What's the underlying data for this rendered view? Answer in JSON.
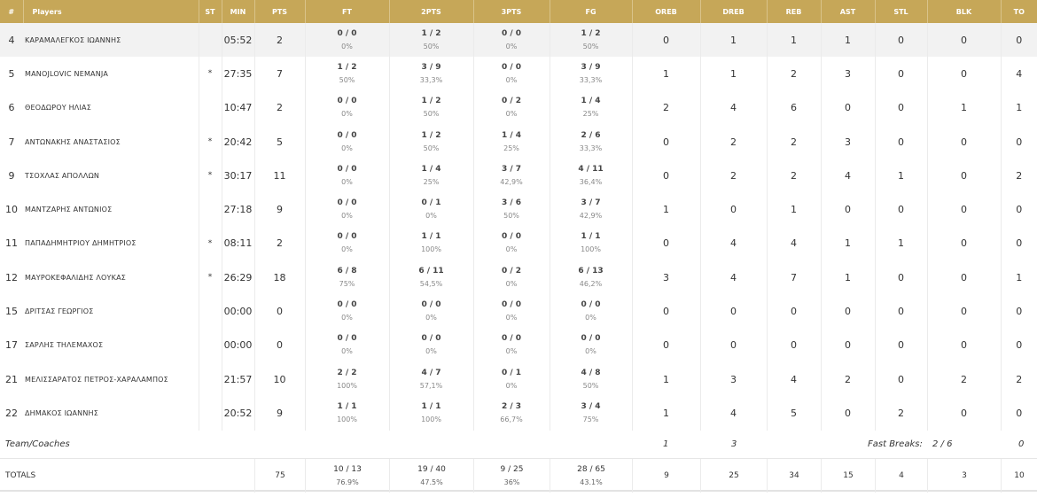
{
  "headers": {
    "num": "#",
    "players": "Players",
    "st": "ST",
    "min": "MIN",
    "pts": "PTS",
    "ft": "FT",
    "pts2": "2PTS",
    "pts3": "3PTS",
    "fg": "FG",
    "oreb": "OREB",
    "dreb": "DREB",
    "reb": "REB",
    "ast": "AST",
    "stl": "STL",
    "blk": "BLK",
    "to": "TO"
  },
  "players": [
    {
      "num": "4",
      "name": "ΚΑΡΑΜΑΛΕΓΚΟΣ ΙΩΑΝΝΗΣ",
      "st": "",
      "min": "05:52",
      "pts": "2",
      "ft": "0 / 0",
      "ft_pct": "0%",
      "p2": "1 / 2",
      "p2_pct": "50%",
      "p3": "0 / 0",
      "p3_pct": "0%",
      "fg": "1 / 2",
      "fg_pct": "50%",
      "oreb": "0",
      "dreb": "1",
      "reb": "1",
      "ast": "1",
      "stl": "0",
      "blk": "0",
      "to": "0"
    },
    {
      "num": "5",
      "name": "MANOJLOVIC NEMANJA",
      "st": "*",
      "min": "27:35",
      "pts": "7",
      "ft": "1 / 2",
      "ft_pct": "50%",
      "p2": "3 / 9",
      "p2_pct": "33,3%",
      "p3": "0 / 0",
      "p3_pct": "0%",
      "fg": "3 / 9",
      "fg_pct": "33,3%",
      "oreb": "1",
      "dreb": "1",
      "reb": "2",
      "ast": "3",
      "stl": "0",
      "blk": "0",
      "to": "4"
    },
    {
      "num": "6",
      "name": "ΘΕΟΔΩΡΟΥ ΗΛΙΑΣ",
      "st": "",
      "min": "10:47",
      "pts": "2",
      "ft": "0 / 0",
      "ft_pct": "0%",
      "p2": "1 / 2",
      "p2_pct": "50%",
      "p3": "0 / 2",
      "p3_pct": "0%",
      "fg": "1 / 4",
      "fg_pct": "25%",
      "oreb": "2",
      "dreb": "4",
      "reb": "6",
      "ast": "0",
      "stl": "0",
      "blk": "1",
      "to": "1"
    },
    {
      "num": "7",
      "name": "ΑΝΤΩΝΑΚΗΣ ΑΝΑΣΤΑΣΙΟΣ",
      "st": "*",
      "min": "20:42",
      "pts": "5",
      "ft": "0 / 0",
      "ft_pct": "0%",
      "p2": "1 / 2",
      "p2_pct": "50%",
      "p3": "1 / 4",
      "p3_pct": "25%",
      "fg": "2 / 6",
      "fg_pct": "33,3%",
      "oreb": "0",
      "dreb": "2",
      "reb": "2",
      "ast": "3",
      "stl": "0",
      "blk": "0",
      "to": "0"
    },
    {
      "num": "9",
      "name": "ΤΣΟΧΛΑΣ ΑΠΟΛΛΩΝ",
      "st": "*",
      "min": "30:17",
      "pts": "11",
      "ft": "0 / 0",
      "ft_pct": "0%",
      "p2": "1 / 4",
      "p2_pct": "25%",
      "p3": "3 / 7",
      "p3_pct": "42,9%",
      "fg": "4 / 11",
      "fg_pct": "36,4%",
      "oreb": "0",
      "dreb": "2",
      "reb": "2",
      "ast": "4",
      "stl": "1",
      "blk": "0",
      "to": "2"
    },
    {
      "num": "10",
      "name": "ΜΑΝΤΖΑΡΗΣ ΑΝΤΩΝΙΟΣ",
      "st": "",
      "min": "27:18",
      "pts": "9",
      "ft": "0 / 0",
      "ft_pct": "0%",
      "p2": "0 / 1",
      "p2_pct": "0%",
      "p3": "3 / 6",
      "p3_pct": "50%",
      "fg": "3 / 7",
      "fg_pct": "42,9%",
      "oreb": "1",
      "dreb": "0",
      "reb": "1",
      "ast": "0",
      "stl": "0",
      "blk": "0",
      "to": "0"
    },
    {
      "num": "11",
      "name": "ΠΑΠΑΔΗΜΗΤΡΙΟΥ ΔΗΜΗΤΡΙΟΣ",
      "st": "*",
      "min": "08:11",
      "pts": "2",
      "ft": "0 / 0",
      "ft_pct": "0%",
      "p2": "1 / 1",
      "p2_pct": "100%",
      "p3": "0 / 0",
      "p3_pct": "0%",
      "fg": "1 / 1",
      "fg_pct": "100%",
      "oreb": "0",
      "dreb": "4",
      "reb": "4",
      "ast": "1",
      "stl": "1",
      "blk": "0",
      "to": "0"
    },
    {
      "num": "12",
      "name": "ΜΑΥΡΟΚΕΦΑΛΙΔΗΣ ΛΟΥΚΑΣ",
      "st": "*",
      "min": "26:29",
      "pts": "18",
      "ft": "6 / 8",
      "ft_pct": "75%",
      "p2": "6 / 11",
      "p2_pct": "54,5%",
      "p3": "0 / 2",
      "p3_pct": "0%",
      "fg": "6 / 13",
      "fg_pct": "46,2%",
      "oreb": "3",
      "dreb": "4",
      "reb": "7",
      "ast": "1",
      "stl": "0",
      "blk": "0",
      "to": "1"
    },
    {
      "num": "15",
      "name": "ΔΡΙΤΣΑΣ ΓΕΩΡΓΙΟΣ",
      "st": "",
      "min": "00:00",
      "pts": "0",
      "ft": "0 / 0",
      "ft_pct": "0%",
      "p2": "0 / 0",
      "p2_pct": "0%",
      "p3": "0 / 0",
      "p3_pct": "0%",
      "fg": "0 / 0",
      "fg_pct": "0%",
      "oreb": "0",
      "dreb": "0",
      "reb": "0",
      "ast": "0",
      "stl": "0",
      "blk": "0",
      "to": "0"
    },
    {
      "num": "17",
      "name": "ΣΑΡΛΗΣ ΤΗΛΕΜΑΧΟΣ",
      "st": "",
      "min": "00:00",
      "pts": "0",
      "ft": "0 / 0",
      "ft_pct": "0%",
      "p2": "0 / 0",
      "p2_pct": "0%",
      "p3": "0 / 0",
      "p3_pct": "0%",
      "fg": "0 / 0",
      "fg_pct": "0%",
      "oreb": "0",
      "dreb": "0",
      "reb": "0",
      "ast": "0",
      "stl": "0",
      "blk": "0",
      "to": "0"
    },
    {
      "num": "21",
      "name": "ΜΕΛΙΣΣΑΡΑΤΟΣ ΠΕΤΡΟΣ-ΧΑΡΑΛΑΜΠΟΣ",
      "st": "",
      "min": "21:57",
      "pts": "10",
      "ft": "2 / 2",
      "ft_pct": "100%",
      "p2": "4 / 7",
      "p2_pct": "57,1%",
      "p3": "0 / 1",
      "p3_pct": "0%",
      "fg": "4 / 8",
      "fg_pct": "50%",
      "oreb": "1",
      "dreb": "3",
      "reb": "4",
      "ast": "2",
      "stl": "0",
      "blk": "2",
      "to": "2"
    },
    {
      "num": "22",
      "name": "ΔΗΜΑΚΟΣ ΙΩΑΝΝΗΣ",
      "st": "",
      "min": "20:52",
      "pts": "9",
      "ft": "1 / 1",
      "ft_pct": "100%",
      "p2": "1 / 1",
      "p2_pct": "100%",
      "p3": "2 / 3",
      "p3_pct": "66,7%",
      "fg": "3 / 4",
      "fg_pct": "75%",
      "oreb": "1",
      "dreb": "4",
      "reb": "5",
      "ast": "0",
      "stl": "2",
      "blk": "0",
      "to": "0"
    }
  ],
  "team": {
    "label": "Team/Coaches",
    "oreb": "1",
    "dreb": "3",
    "fast_breaks_label": "Fast Breaks:",
    "fast_breaks_value": "2 / 6",
    "to": "0"
  },
  "totals": {
    "label": "TOTALS",
    "pts": "75",
    "ft": "10 / 13",
    "ft_pct": "76.9%",
    "p2": "19 / 40",
    "p2_pct": "47.5%",
    "p3": "9 / 25",
    "p3_pct": "36%",
    "fg": "28 / 65",
    "fg_pct": "43.1%",
    "oreb": "9",
    "dreb": "25",
    "reb": "34",
    "ast": "15",
    "stl": "4",
    "blk": "3",
    "to": "10"
  },
  "colors": {
    "header_bg": "#c6a758",
    "header_text": "#ffffff",
    "highlight_row": "#f2f2f2"
  }
}
